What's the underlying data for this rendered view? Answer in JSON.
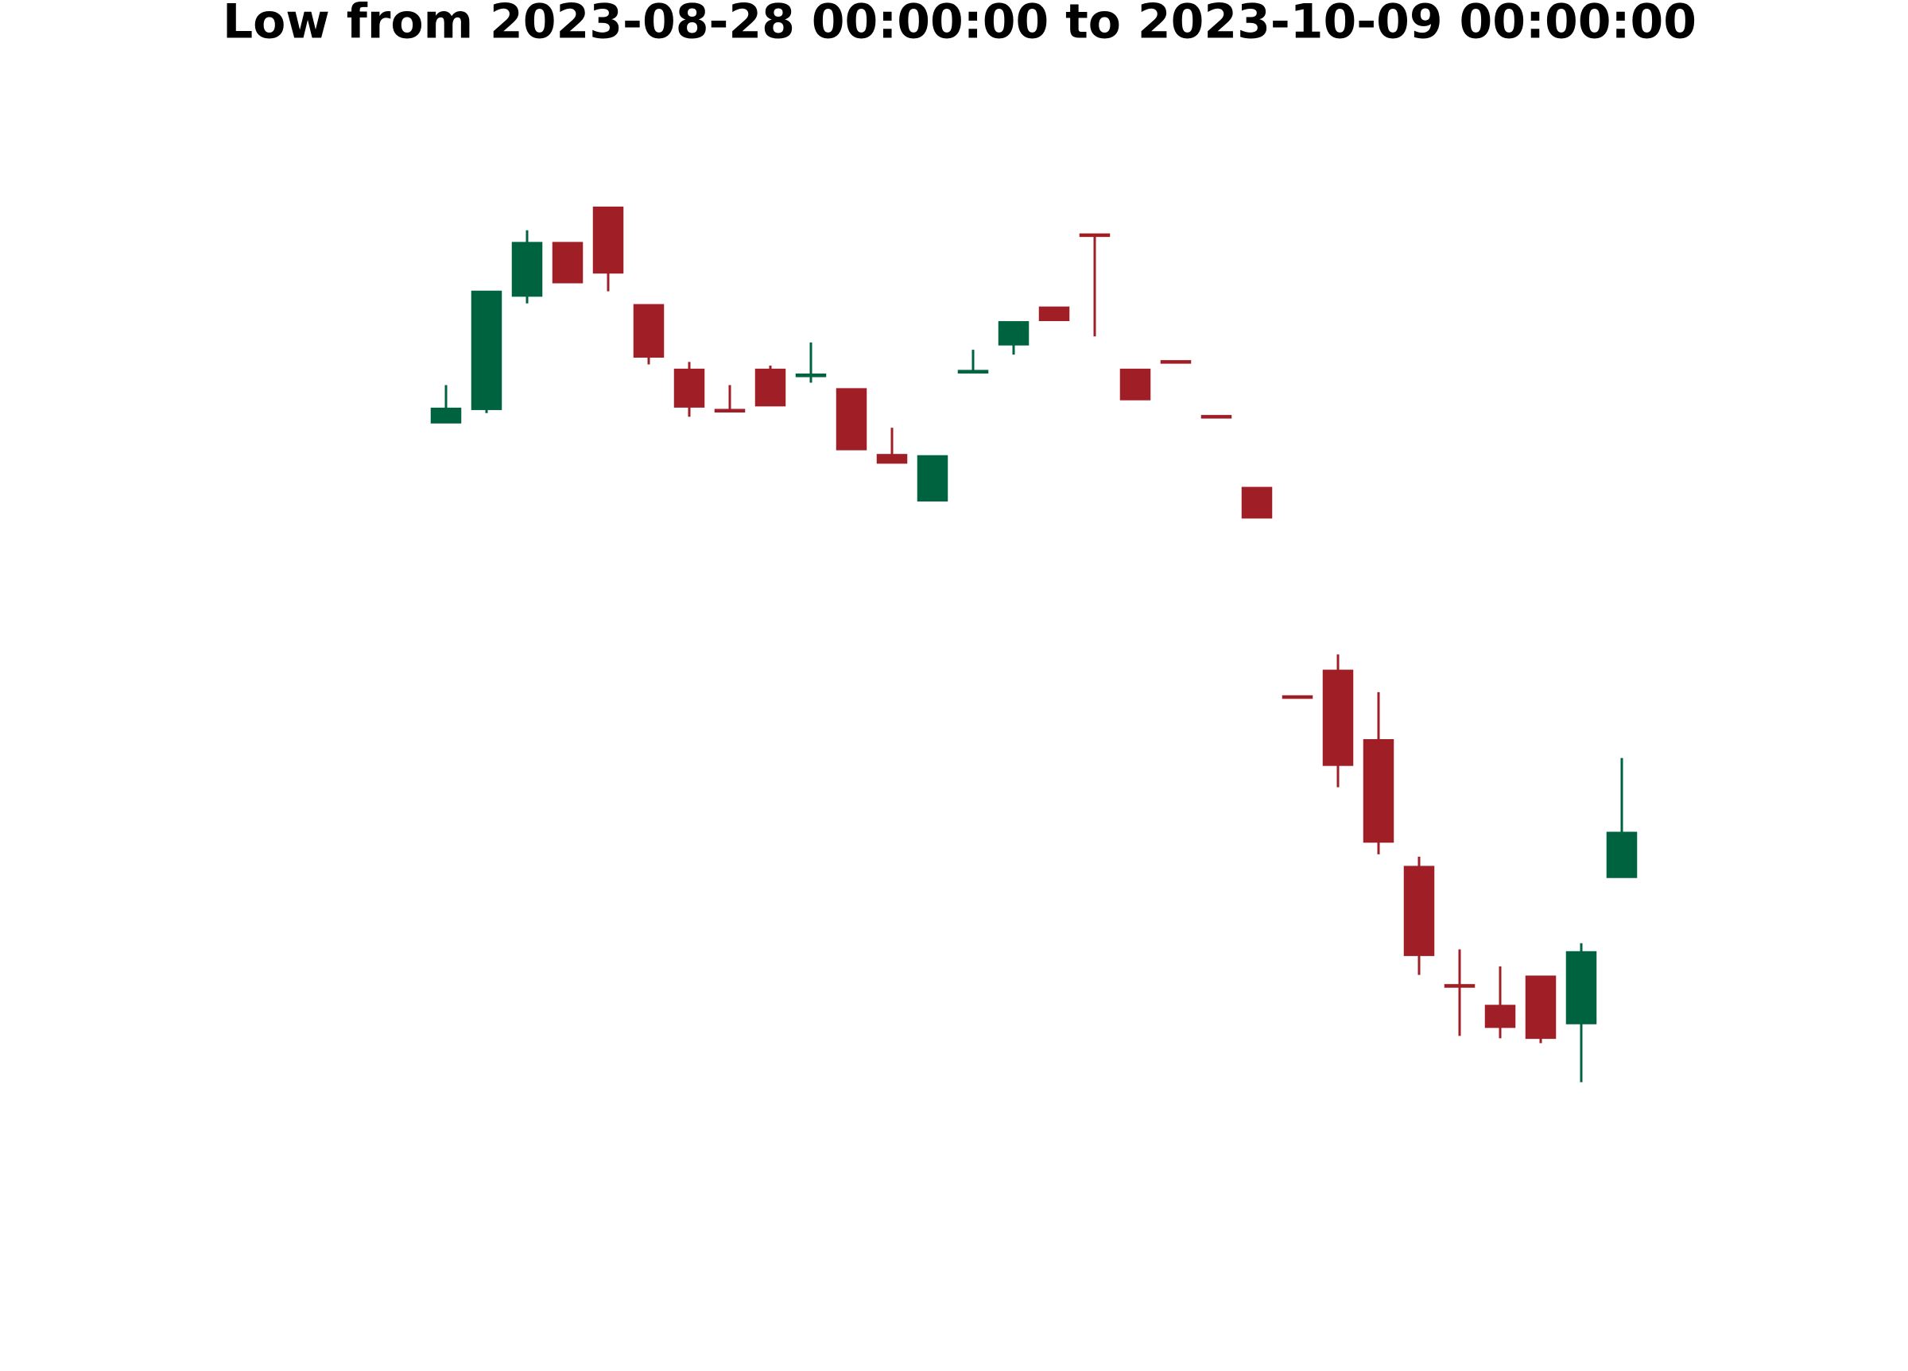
{
  "chart_data": {
    "type": "candlestick",
    "title": "Low from 2023-08-28 00:00:00 to 2023-10-09 00:00:00",
    "categories": [
      null,
      null,
      null,
      null,
      null,
      null,
      null,
      null,
      null,
      null,
      null,
      null,
      null,
      null,
      null,
      null,
      null,
      null,
      null,
      null,
      null,
      null,
      null,
      null,
      null,
      null,
      null,
      null,
      null,
      null
    ],
    "open": [
      778,
      789,
      882,
      926,
      955,
      875,
      822,
      789,
      822,
      816,
      806,
      752,
      714,
      819,
      842,
      873,
      933,
      822,
      829,
      784,
      725,
      554,
      575,
      518,
      414,
      317,
      300,
      324,
      285,
      405
    ],
    "high": [
      809,
      886,
      936,
      926,
      955,
      875,
      828,
      809,
      825,
      844,
      806,
      774,
      751,
      838,
      861,
      873,
      933,
      822,
      829,
      784,
      725,
      554,
      588,
      557,
      422,
      346,
      332,
      324,
      351,
      503
    ],
    "low": [
      778,
      786,
      876,
      893,
      886,
      826,
      783,
      787,
      792,
      811,
      756,
      745,
      714,
      819,
      834,
      862,
      849,
      797,
      828,
      783,
      700,
      553,
      479,
      424,
      325,
      275,
      273,
      269,
      237,
      405
    ],
    "close": [
      790,
      886,
      926,
      893,
      901,
      832,
      791,
      787,
      792,
      818,
      756,
      745,
      751,
      821,
      861,
      862,
      932,
      797,
      828,
      783,
      700,
      553,
      497,
      434,
      341,
      315,
      282,
      273,
      344,
      442
    ],
    "up_color": "#006340",
    "down_color": "#a01f27",
    "ylim": [
      0,
      1125
    ]
  }
}
